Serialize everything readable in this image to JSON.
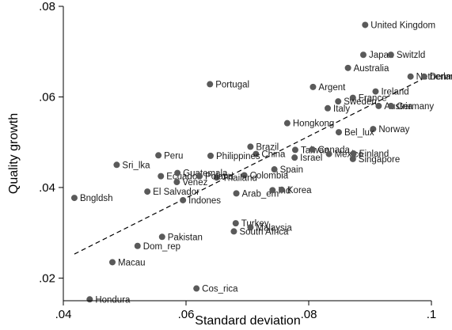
{
  "chart_data": {
    "type": "scatter",
    "xlabel": "Standard deviation",
    "ylabel": "Quality growth",
    "xlim": [
      0.04,
      0.1
    ],
    "ylim": [
      0.015,
      0.08
    ],
    "xticks": [
      {
        "value": 0.04,
        "label": ".04"
      },
      {
        "value": 0.06,
        "label": ".06"
      },
      {
        "value": 0.08,
        "label": ".08"
      },
      {
        "value": 0.1,
        "label": ".1"
      }
    ],
    "yticks": [
      {
        "value": 0.02,
        "label": ".02"
      },
      {
        "value": 0.04,
        "label": ".04"
      },
      {
        "value": 0.06,
        "label": ".06"
      },
      {
        "value": 0.08,
        "label": ".08"
      }
    ],
    "fit_line": {
      "style": "dashed",
      "from": [
        0.0418,
        0.0253
      ],
      "to": [
        0.0985,
        0.0639
      ]
    },
    "points": [
      {
        "label": "United Kingdom",
        "x": 0.0892,
        "y": 0.0759
      },
      {
        "label": "Japan",
        "x": 0.0889,
        "y": 0.0693
      },
      {
        "label": "Switzld",
        "x": 0.0934,
        "y": 0.0693
      },
      {
        "label": "Australia",
        "x": 0.0864,
        "y": 0.0664
      },
      {
        "label": "Portugal",
        "x": 0.0639,
        "y": 0.0628
      },
      {
        "label": "Netherlands",
        "x": 0.0966,
        "y": 0.0645
      },
      {
        "label": "Denmark",
        "x": 0.0988,
        "y": 0.0645
      },
      {
        "label": "Argent",
        "x": 0.0807,
        "y": 0.0622
      },
      {
        "label": "Ireland",
        "x": 0.0909,
        "y": 0.0612
      },
      {
        "label": "France",
        "x": 0.0872,
        "y": 0.0598
      },
      {
        "label": "Sweden",
        "x": 0.0848,
        "y": 0.059
      },
      {
        "label": "Italy",
        "x": 0.0831,
        "y": 0.0575
      },
      {
        "label": "Austria",
        "x": 0.0914,
        "y": 0.058
      },
      {
        "label": "Germany",
        "x": 0.0934,
        "y": 0.058
      },
      {
        "label": "Hongkong",
        "x": 0.0765,
        "y": 0.0542
      },
      {
        "label": "Norway",
        "x": 0.0905,
        "y": 0.0529
      },
      {
        "label": "Bel_lux",
        "x": 0.0849,
        "y": 0.0522
      },
      {
        "label": "Brazil",
        "x": 0.0705,
        "y": 0.049
      },
      {
        "label": "China",
        "x": 0.0714,
        "y": 0.0474
      },
      {
        "label": "Taiwan",
        "x": 0.0778,
        "y": 0.0483
      },
      {
        "label": "Canada",
        "x": 0.0806,
        "y": 0.0484
      },
      {
        "label": "Mexico",
        "x": 0.0833,
        "y": 0.0474
      },
      {
        "label": "Israel",
        "x": 0.0777,
        "y": 0.0466
      },
      {
        "label": "Finland",
        "x": 0.0873,
        "y": 0.0475
      },
      {
        "label": "Singapore",
        "x": 0.0872,
        "y": 0.0463
      },
      {
        "label": "Peru",
        "x": 0.0555,
        "y": 0.0471
      },
      {
        "label": "Philippines",
        "x": 0.064,
        "y": 0.047
      },
      {
        "label": "Sri_lka",
        "x": 0.0487,
        "y": 0.045
      },
      {
        "label": "Spain",
        "x": 0.0744,
        "y": 0.044
      },
      {
        "label": "Ecuador",
        "x": 0.0559,
        "y": 0.0425
      },
      {
        "label": "Guatemala",
        "x": 0.0586,
        "y": 0.0432
      },
      {
        "label": "Venez",
        "x": 0.0585,
        "y": 0.0412
      },
      {
        "label": "Colombia",
        "x": 0.0695,
        "y": 0.0427
      },
      {
        "label": "Thailand",
        "x": 0.065,
        "y": 0.0422
      },
      {
        "label": "Poland",
        "x": 0.0622,
        "y": 0.0425
      },
      {
        "label": "El Salvador",
        "x": 0.0537,
        "y": 0.0391
      },
      {
        "label": "Indones",
        "x": 0.0595,
        "y": 0.0372
      },
      {
        "label": "Arab_em",
        "x": 0.0682,
        "y": 0.0387
      },
      {
        "label": "Ind",
        "x": 0.0741,
        "y": 0.0394
      },
      {
        "label": "Korea",
        "x": 0.0756,
        "y": 0.0395
      },
      {
        "label": "Bngldsh",
        "x": 0.0418,
        "y": 0.0377
      },
      {
        "label": "Turkey",
        "x": 0.0681,
        "y": 0.0321
      },
      {
        "label": "Malaysia",
        "x": 0.0705,
        "y": 0.0312
      },
      {
        "label": "South Africa",
        "x": 0.0678,
        "y": 0.0303
      },
      {
        "label": "Pakistan",
        "x": 0.0561,
        "y": 0.0291
      },
      {
        "label": "Dom_rep",
        "x": 0.0521,
        "y": 0.0271
      },
      {
        "label": "Macau",
        "x": 0.048,
        "y": 0.0235
      },
      {
        "label": "Cos_rica",
        "x": 0.0617,
        "y": 0.0177
      },
      {
        "label": "Hondura",
        "x": 0.0443,
        "y": 0.0153
      }
    ]
  }
}
